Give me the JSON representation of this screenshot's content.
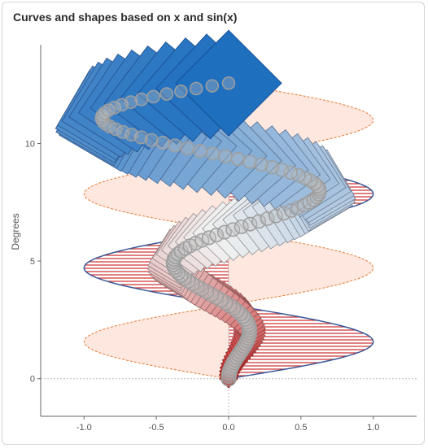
{
  "chart_data": {
    "type": "scatter",
    "title": "Curves and shapes based on x and sin(x)",
    "xlabel": "",
    "ylabel": "Degrees",
    "xlim": [
      -1.3,
      1.3
    ],
    "ylim": [
      -1.6,
      14.2
    ],
    "x_ticks": [
      "-1.0",
      "-0.5",
      "0.0",
      "0.5",
      "1.0"
    ],
    "x_tick_values": [
      -1.0,
      -0.5,
      0.0,
      0.5,
      1.0
    ],
    "y_ticks": [
      "0",
      "5",
      "10"
    ],
    "y_tick_values": [
      0,
      5,
      10
    ],
    "grid": false,
    "zero_lines": "dotted",
    "series": [
      {
        "label": "sin(y) filled with horizontal hatching",
        "type": "area",
        "y_range": [
          0,
          12.57
        ],
        "function": "x = sin(y)",
        "fill": "#d62728",
        "outline": "#3b5998"
      },
      {
        "label": "-sin(y) dashed fill",
        "type": "area",
        "y_range": [
          0,
          12.57
        ],
        "function": "x = -sin(y)",
        "fill": "#fde7df",
        "outline": "#e8772e"
      },
      {
        "label": "rotated squares",
        "type": "scatter",
        "y_range": [
          0,
          12.57
        ],
        "function": "x = y/(4π)·sin(y)",
        "marker": "square",
        "colormap": "red-white-blue"
      },
      {
        "label": "circles",
        "type": "scatter",
        "y_range": [
          0,
          12.57
        ],
        "function": "x = y/(4π)·sin(y)",
        "marker": "circle",
        "color": "#9e9e9e"
      }
    ],
    "colors": {
      "red": "#c82020",
      "blue": "#1f6fbf",
      "outline": "#3b5998",
      "dashed_orange": "#e8772e",
      "light_fill": "#fde7df",
      "circle": "#9e9e9e"
    }
  }
}
